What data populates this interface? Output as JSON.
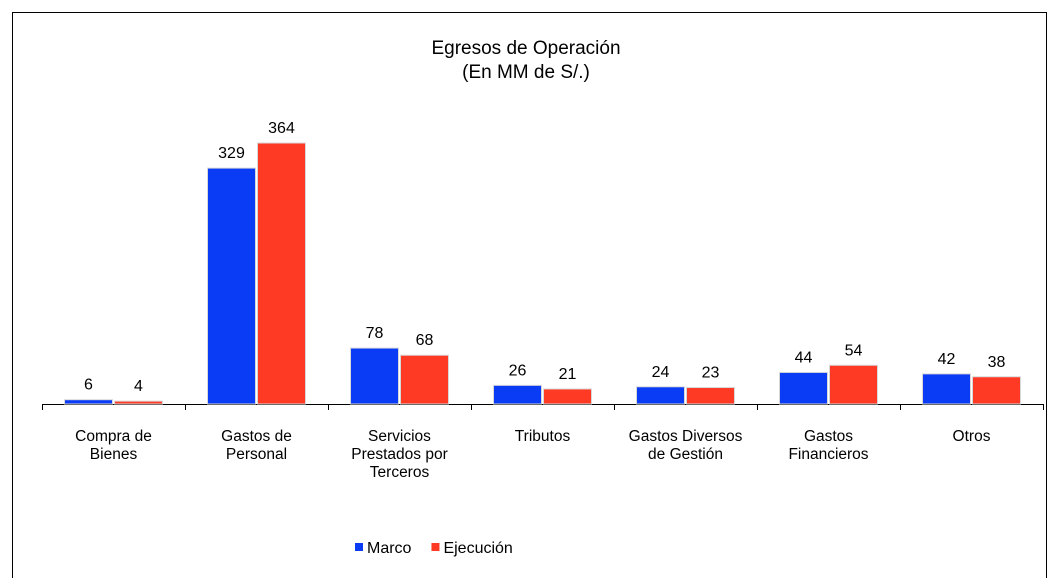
{
  "chart_data": {
    "type": "bar",
    "title": "Egresos de Operación",
    "subtitle": "(En MM de S/.)",
    "categories": [
      "Compra de\nBienes",
      "Gastos de\nPersonal",
      "Servicios\nPrestados por\nTerceros",
      "Tributos",
      "Gastos Diversos\nde Gestión",
      "Gastos\nFinancieros",
      "Otros"
    ],
    "series": [
      {
        "name": "Marco",
        "color": "#0a3cf5",
        "values": [
          6,
          329,
          78,
          26,
          24,
          44,
          42
        ]
      },
      {
        "name": "Ejecución",
        "color": "#ff3a24",
        "values": [
          4,
          364,
          68,
          21,
          23,
          54,
          38
        ]
      }
    ],
    "legend": "bottom"
  }
}
